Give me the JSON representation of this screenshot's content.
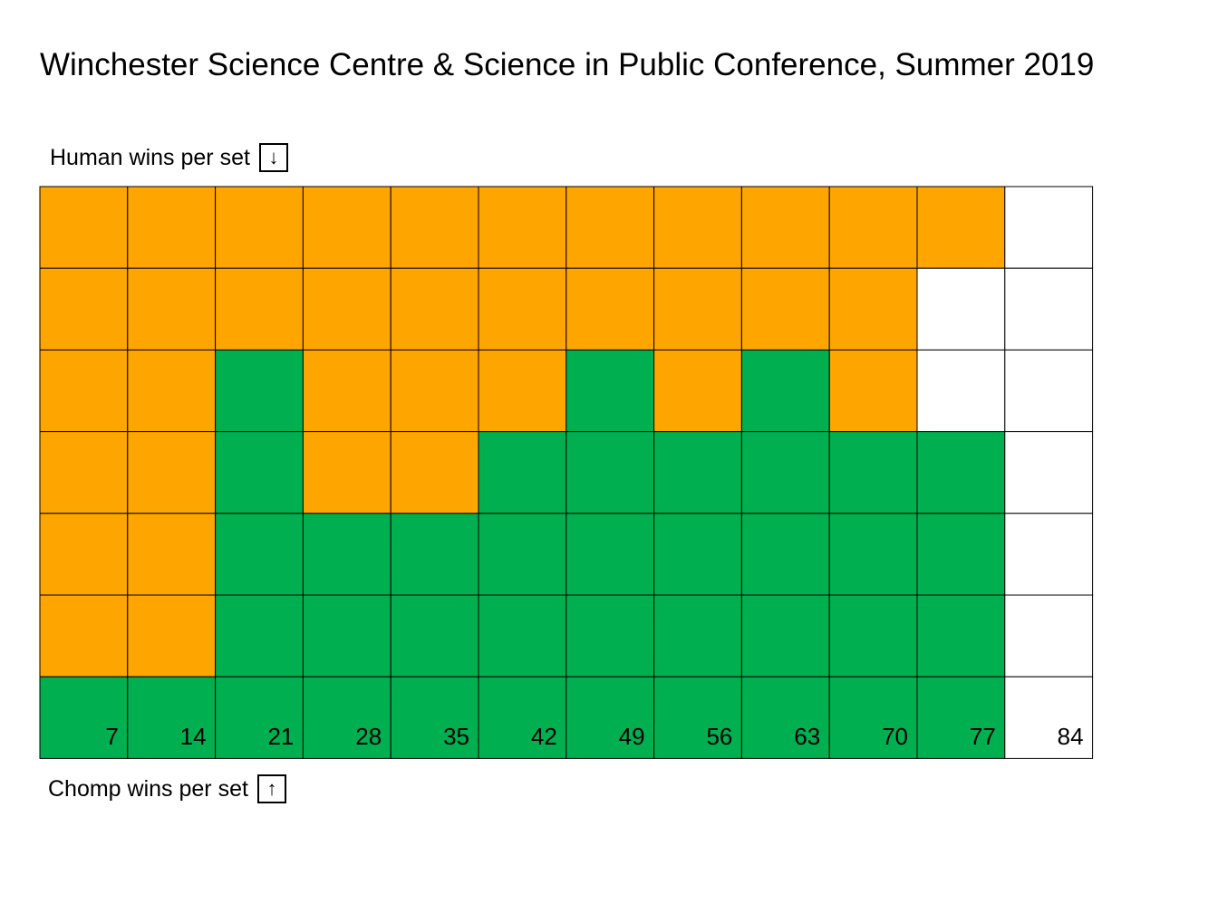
{
  "title": "Winchester Science Centre & Science in Public Conference, Summer 2019",
  "top_label": "Human wins per set",
  "top_arrow": "↓",
  "bottom_label": "Chomp wins per set",
  "bottom_arrow": "↑",
  "colors": {
    "human": "#FFA500",
    "chomp": "#00B050",
    "empty": "#FFFFFF",
    "grid_line": "#000000"
  },
  "chart_data": {
    "type": "heatmap",
    "title": "Winchester Science Centre & Science in Public Conference, Summer 2019",
    "columns": [
      7,
      14,
      21,
      28,
      35,
      42,
      49,
      56,
      63,
      70,
      77,
      84
    ],
    "legend": {
      "H": "Human wins per set",
      "C": "Chomp wins per set",
      "E": ""
    },
    "cells": [
      [
        "H",
        "H",
        "H",
        "H",
        "H",
        "H",
        "H",
        "H",
        "H",
        "H",
        "H",
        "E"
      ],
      [
        "H",
        "H",
        "H",
        "H",
        "H",
        "H",
        "H",
        "H",
        "H",
        "H",
        "E",
        "E"
      ],
      [
        "H",
        "H",
        "C",
        "H",
        "H",
        "H",
        "C",
        "H",
        "C",
        "H",
        "E",
        "E"
      ],
      [
        "H",
        "H",
        "C",
        "H",
        "H",
        "C",
        "C",
        "C",
        "C",
        "C",
        "C",
        "E"
      ],
      [
        "H",
        "H",
        "C",
        "C",
        "C",
        "C",
        "C",
        "C",
        "C",
        "C",
        "C",
        "E"
      ],
      [
        "H",
        "H",
        "C",
        "C",
        "C",
        "C",
        "C",
        "C",
        "C",
        "C",
        "C",
        "E"
      ],
      [
        "C",
        "C",
        "C",
        "C",
        "C",
        "C",
        "C",
        "C",
        "C",
        "C",
        "C",
        "E"
      ]
    ]
  }
}
